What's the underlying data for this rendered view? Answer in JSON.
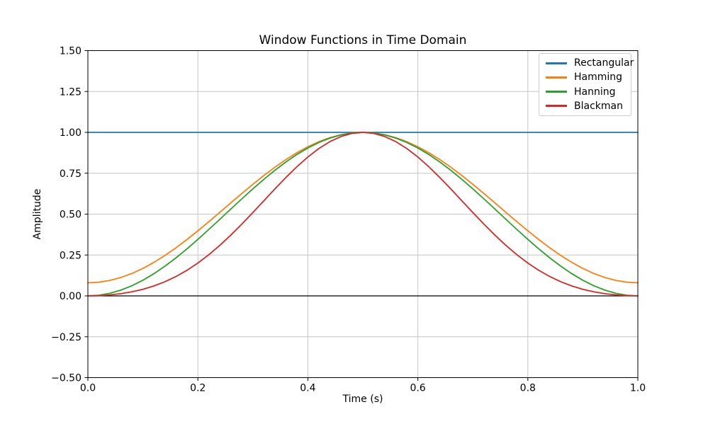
{
  "figure": {
    "background": "#ffffff",
    "text_color": "#000000"
  },
  "chart_data": {
    "type": "line",
    "title": "Window Functions in Time Domain",
    "xlabel": "Time (s)",
    "ylabel": "Amplitude",
    "xlim": [
      0.0,
      1.0
    ],
    "ylim": [
      -0.5,
      1.5
    ],
    "grid": true,
    "grid_color": "#c6c6c6",
    "spine_color": "#000000",
    "zero_line": true,
    "zero_line_color": "#000000",
    "legend_position": "upper right",
    "legend_border_color": "#cccccc",
    "xtick_values": [
      0.0,
      0.2,
      0.4,
      0.6,
      0.8,
      1.0
    ],
    "xtick_labels": [
      "0.0",
      "0.2",
      "0.4",
      "0.6",
      "0.8",
      "1.0"
    ],
    "ytick_values": [
      -0.5,
      -0.25,
      0.0,
      0.25,
      0.5,
      0.75,
      1.0,
      1.25,
      1.5
    ],
    "ytick_labels": [
      "−0.50",
      "−0.25",
      "0.00",
      "0.25",
      "0.50",
      "0.75",
      "1.00",
      "1.25",
      "1.50"
    ],
    "x": [
      0.0,
      0.02,
      0.04,
      0.06,
      0.08,
      0.1,
      0.12,
      0.14,
      0.16,
      0.18,
      0.2,
      0.22,
      0.24,
      0.26,
      0.28,
      0.3,
      0.32,
      0.34,
      0.36,
      0.38,
      0.4,
      0.42,
      0.44,
      0.46,
      0.48,
      0.5,
      0.52,
      0.54,
      0.56,
      0.58,
      0.6,
      0.62,
      0.64,
      0.66,
      0.68,
      0.7,
      0.72,
      0.74,
      0.76,
      0.78,
      0.8,
      0.82,
      0.84,
      0.86,
      0.88,
      0.9,
      0.92,
      0.94,
      0.96,
      0.98,
      1.0
    ],
    "series": [
      {
        "name": "Rectangular",
        "color": "#1f77b4",
        "values": [
          1.0,
          1.0,
          1.0,
          1.0,
          1.0,
          1.0,
          1.0,
          1.0,
          1.0,
          1.0,
          1.0,
          1.0,
          1.0,
          1.0,
          1.0,
          1.0,
          1.0,
          1.0,
          1.0,
          1.0,
          1.0,
          1.0,
          1.0,
          1.0,
          1.0,
          1.0,
          1.0,
          1.0,
          1.0,
          1.0,
          1.0,
          1.0,
          1.0,
          1.0,
          1.0,
          1.0,
          1.0,
          1.0,
          1.0,
          1.0,
          1.0,
          1.0,
          1.0,
          1.0,
          1.0,
          1.0,
          1.0,
          1.0,
          1.0,
          1.0,
          1.0
        ]
      },
      {
        "name": "Hamming",
        "color": "#ff7f0e",
        "values": [
          0.08,
          0.0836,
          0.0945,
          0.1123,
          0.1369,
          0.1679,
          0.2047,
          0.2468,
          0.2935,
          0.3441,
          0.3978,
          0.4538,
          0.5111,
          0.5689,
          0.6262,
          0.6821,
          0.7359,
          0.7865,
          0.8332,
          0.8753,
          0.9121,
          0.9431,
          0.9677,
          0.9856,
          0.9964,
          1.0,
          0.9964,
          0.9856,
          0.9677,
          0.9431,
          0.9121,
          0.8753,
          0.8332,
          0.7865,
          0.7359,
          0.6821,
          0.6262,
          0.5689,
          0.5111,
          0.4538,
          0.3978,
          0.3441,
          0.2935,
          0.2468,
          0.2047,
          0.1679,
          0.1369,
          0.1123,
          0.0945,
          0.0836,
          0.08
        ]
      },
      {
        "name": "Hanning",
        "color": "#2ca02c",
        "values": [
          0.0,
          0.0039,
          0.0157,
          0.0351,
          0.0618,
          0.0955,
          0.1355,
          0.1813,
          0.2321,
          0.2871,
          0.3455,
          0.4063,
          0.4686,
          0.5314,
          0.5937,
          0.6545,
          0.7129,
          0.7679,
          0.8187,
          0.8645,
          0.9045,
          0.9382,
          0.9649,
          0.9843,
          0.9961,
          1.0,
          0.9961,
          0.9843,
          0.9649,
          0.9382,
          0.9045,
          0.8645,
          0.8187,
          0.7679,
          0.7129,
          0.6545,
          0.5937,
          0.5314,
          0.4686,
          0.4063,
          0.3455,
          0.2871,
          0.2321,
          0.1813,
          0.1355,
          0.0955,
          0.0618,
          0.0351,
          0.0157,
          0.0039,
          0.0
        ]
      },
      {
        "name": "Blackman",
        "color": "#d62728",
        "values": [
          0.0,
          0.0014,
          0.0058,
          0.0134,
          0.0247,
          0.0402,
          0.0605,
          0.0863,
          0.118,
          0.1561,
          0.2008,
          0.2519,
          0.3092,
          0.372,
          0.4393,
          0.5098,
          0.5819,
          0.6538,
          0.7237,
          0.7895,
          0.8492,
          0.901,
          0.9432,
          0.9744,
          0.9935,
          1.0,
          0.9935,
          0.9744,
          0.9432,
          0.901,
          0.8492,
          0.7895,
          0.7237,
          0.6538,
          0.5819,
          0.5098,
          0.4393,
          0.372,
          0.3092,
          0.2519,
          0.2008,
          0.1561,
          0.118,
          0.0863,
          0.0605,
          0.0402,
          0.0247,
          0.0134,
          0.0058,
          0.0014,
          0.0
        ]
      }
    ]
  }
}
